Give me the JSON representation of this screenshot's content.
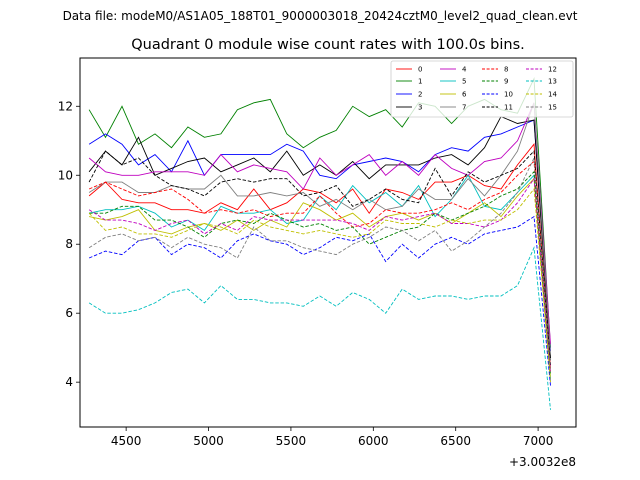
{
  "figure": {
    "suptitle": "Data file: modeM0/AS1A05_188T01_9000003018_20424cztM0_level2_quad_clean.evt",
    "offset_label": "+3.0032e8"
  },
  "chart_data": {
    "type": "line",
    "title": "Quadrant 0 module wise count rates with 100.0s bins.",
    "xlabel": "",
    "ylabel": "",
    "xlim": [
      4220,
      7230
    ],
    "ylim": [
      2.7,
      13.4
    ],
    "x_offset": 300320000,
    "xticks": [
      4500,
      5000,
      5500,
      6000,
      6500,
      7000
    ],
    "yticks": [
      4,
      6,
      8,
      10,
      12
    ],
    "legend_position": "top-right",
    "x": [
      4275,
      4375,
      4475,
      4575,
      4675,
      4775,
      4875,
      4975,
      5075,
      5175,
      5275,
      5375,
      5475,
      5575,
      5675,
      5775,
      5875,
      5975,
      6075,
      6175,
      6275,
      6375,
      6475,
      6575,
      6675,
      6775,
      6875,
      6975,
      7075
    ],
    "series": [
      {
        "name": "0",
        "color": "#ff0000",
        "dash": "solid",
        "values": [
          9.4,
          9.8,
          9.3,
          9.2,
          9.2,
          9.0,
          9.0,
          8.9,
          9.2,
          9.0,
          9.6,
          9.0,
          9.2,
          9.6,
          9.5,
          9.2,
          9.6,
          8.9,
          9.6,
          9.5,
          9.3,
          9.8,
          9.8,
          10.0,
          9.7,
          9.6,
          10.3,
          10.9,
          4.4
        ]
      },
      {
        "name": "1",
        "color": "#008000",
        "dash": "solid",
        "values": [
          11.9,
          11.1,
          12.0,
          10.9,
          11.2,
          10.8,
          11.4,
          11.1,
          11.2,
          11.9,
          12.1,
          12.2,
          11.2,
          10.8,
          11.1,
          11.3,
          12.0,
          11.7,
          11.9,
          11.4,
          12.1,
          12.0,
          11.5,
          12.0,
          12.2,
          11.9,
          11.8,
          12.8,
          5.0
        ]
      },
      {
        "name": "2",
        "color": "#0000ff",
        "dash": "solid",
        "values": [
          10.9,
          11.2,
          10.9,
          10.3,
          10.6,
          10.1,
          11.0,
          10.0,
          10.6,
          10.6,
          10.6,
          10.6,
          10.9,
          10.7,
          10.0,
          9.9,
          10.3,
          10.4,
          10.5,
          10.4,
          10.1,
          10.6,
          10.8,
          10.7,
          11.1,
          11.2,
          11.4,
          11.6,
          4.9
        ]
      },
      {
        "name": "3",
        "color": "#000000",
        "dash": "solid",
        "values": [
          10.1,
          10.7,
          10.3,
          11.1,
          10.0,
          10.2,
          10.4,
          10.5,
          10.1,
          10.3,
          10.5,
          10.1,
          10.7,
          10.0,
          10.3,
          10.0,
          10.4,
          9.9,
          10.3,
          10.3,
          10.3,
          10.5,
          10.6,
          10.3,
          10.8,
          11.7,
          11.5,
          11.6,
          4.7
        ]
      },
      {
        "name": "4",
        "color": "#bf00bf",
        "dash": "solid",
        "values": [
          10.5,
          10.1,
          10.0,
          10.0,
          10.1,
          10.1,
          10.1,
          10.0,
          10.6,
          10.1,
          10.3,
          10.2,
          10.1,
          9.6,
          10.5,
          10.0,
          10.3,
          10.6,
          10.0,
          10.4,
          10.0,
          10.6,
          10.2,
          10.0,
          10.4,
          10.5,
          11.0,
          12.1,
          5.1
        ]
      },
      {
        "name": "5",
        "color": "#00bfbf",
        "dash": "solid",
        "values": [
          8.9,
          9.0,
          9.0,
          9.1,
          8.9,
          8.5,
          8.7,
          8.4,
          9.1,
          8.9,
          8.9,
          9.0,
          8.6,
          8.7,
          9.4,
          9.0,
          9.7,
          9.2,
          9.5,
          9.1,
          9.7,
          8.8,
          9.3,
          10.0,
          9.1,
          9.0,
          9.5,
          10.0,
          4.1
        ]
      },
      {
        "name": "6",
        "color": "#bfbf00",
        "dash": "solid",
        "values": [
          8.8,
          8.7,
          8.8,
          9.0,
          8.4,
          8.3,
          8.5,
          8.6,
          8.4,
          8.7,
          8.4,
          8.7,
          8.5,
          9.2,
          9.0,
          8.7,
          8.9,
          8.5,
          8.8,
          8.9,
          8.7,
          8.9,
          8.6,
          8.9,
          9.2,
          8.8,
          9.4,
          9.9,
          4.0
        ]
      },
      {
        "name": "7",
        "color": "#808080",
        "dash": "solid",
        "values": [
          9.5,
          9.8,
          9.8,
          9.5,
          9.5,
          9.7,
          9.6,
          9.6,
          10.0,
          9.4,
          9.4,
          9.5,
          9.4,
          9.5,
          9.1,
          9.3,
          9.0,
          9.3,
          9.0,
          9.1,
          9.6,
          9.3,
          9.3,
          9.9,
          9.4,
          10.0,
          10.7,
          12.1,
          4.8
        ]
      },
      {
        "name": "8",
        "color": "#ff0000",
        "dash": "dashed",
        "values": [
          9.6,
          9.8,
          9.6,
          9.4,
          9.5,
          9.6,
          9.3,
          8.9,
          9.0,
          8.9,
          9.0,
          8.8,
          8.9,
          8.9,
          9.4,
          8.9,
          8.5,
          8.6,
          9.0,
          8.9,
          8.9,
          9.0,
          9.2,
          9.0,
          9.3,
          9.5,
          10.0,
          10.4,
          4.3
        ]
      },
      {
        "name": "9",
        "color": "#008000",
        "dash": "dashed",
        "values": [
          8.9,
          8.9,
          9.1,
          9.1,
          8.7,
          8.7,
          8.5,
          8.2,
          8.6,
          8.7,
          8.6,
          8.9,
          8.7,
          8.5,
          8.6,
          8.4,
          8.5,
          8.0,
          8.2,
          8.4,
          8.5,
          8.9,
          8.7,
          8.9,
          9.1,
          9.4,
          9.6,
          10.1,
          4.2
        ]
      },
      {
        "name": "10",
        "color": "#0000ff",
        "dash": "dashed",
        "values": [
          7.6,
          7.8,
          7.7,
          8.1,
          8.2,
          7.7,
          8.0,
          7.9,
          7.6,
          8.1,
          8.3,
          8.1,
          8.0,
          7.7,
          7.9,
          8.2,
          8.1,
          8.3,
          7.5,
          8.0,
          7.6,
          8.0,
          8.2,
          8.0,
          8.3,
          8.4,
          8.5,
          8.8,
          3.9
        ]
      },
      {
        "name": "11",
        "color": "#000000",
        "dash": "dashed",
        "values": [
          9.8,
          10.7,
          10.3,
          10.5,
          10.0,
          9.7,
          9.6,
          9.4,
          9.8,
          9.9,
          9.8,
          9.9,
          9.9,
          9.4,
          9.5,
          9.7,
          9.1,
          9.3,
          9.6,
          9.3,
          9.2,
          10.2,
          9.4,
          10.1,
          9.8,
          10.0,
          10.2,
          10.7,
          4.5
        ]
      },
      {
        "name": "12",
        "color": "#bf00bf",
        "dash": "dashed",
        "values": [
          9.0,
          8.7,
          8.7,
          8.6,
          8.4,
          8.6,
          8.7,
          8.3,
          8.6,
          8.4,
          8.8,
          8.7,
          8.7,
          8.7,
          8.7,
          8.7,
          8.6,
          8.4,
          8.8,
          8.7,
          8.8,
          8.9,
          8.6,
          8.6,
          8.5,
          8.7,
          9.2,
          9.9,
          4.3
        ]
      },
      {
        "name": "13",
        "color": "#00bfbf",
        "dash": "dashed",
        "values": [
          6.3,
          6.0,
          6.0,
          6.1,
          6.3,
          6.6,
          6.7,
          6.3,
          6.8,
          6.4,
          6.4,
          6.3,
          6.3,
          6.2,
          6.5,
          6.2,
          6.6,
          6.4,
          6.0,
          6.7,
          6.4,
          6.5,
          6.5,
          6.4,
          6.5,
          6.5,
          6.8,
          7.9,
          3.2
        ]
      },
      {
        "name": "14",
        "color": "#bfbf00",
        "dash": "dashed",
        "values": [
          8.9,
          8.4,
          8.5,
          8.3,
          8.3,
          8.2,
          8.4,
          8.6,
          8.5,
          8.3,
          8.7,
          8.5,
          8.4,
          8.3,
          8.4,
          8.3,
          8.2,
          8.3,
          8.7,
          8.6,
          8.6,
          8.5,
          8.7,
          8.6,
          8.7,
          8.7,
          9.0,
          9.6,
          4.1
        ]
      },
      {
        "name": "15",
        "color": "#808080",
        "dash": "dashed",
        "values": [
          7.9,
          8.2,
          8.3,
          8.1,
          8.2,
          7.9,
          8.2,
          8.0,
          7.9,
          7.6,
          8.5,
          8.1,
          8.1,
          7.9,
          7.8,
          7.7,
          8.0,
          8.2,
          8.5,
          8.4,
          8.1,
          8.4,
          7.8,
          8.1,
          8.5,
          8.9,
          9.5,
          10.5,
          4.3
        ]
      }
    ]
  }
}
